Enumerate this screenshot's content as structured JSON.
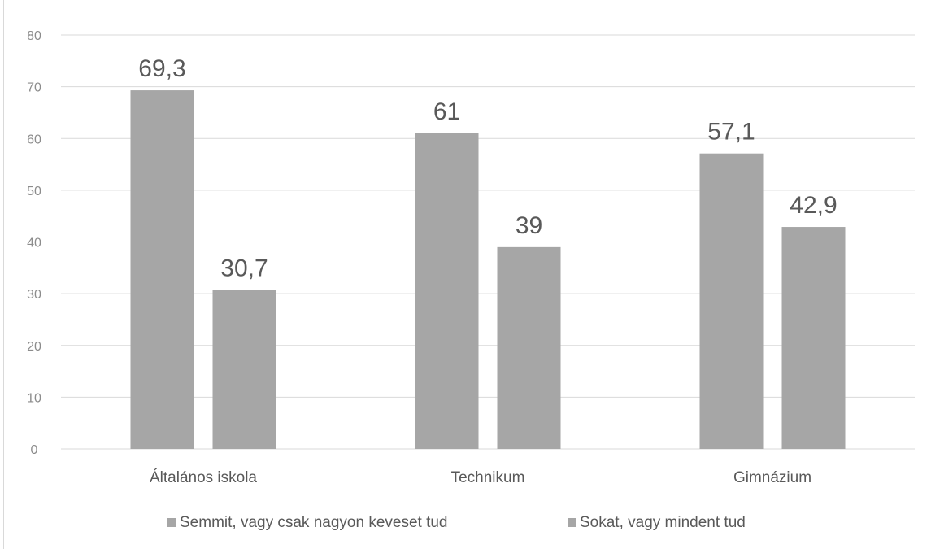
{
  "chart_data": {
    "type": "bar",
    "categories": [
      "Általános iskola",
      "Technikum",
      "Gimnázium"
    ],
    "series": [
      {
        "name": "Semmit, vagy csak nagyon keveset tud",
        "values": [
          69.3,
          61,
          57.1
        ],
        "labels": [
          "69,3",
          "61",
          "57,1"
        ]
      },
      {
        "name": "Sokat, vagy mindent tud",
        "values": [
          30.7,
          39,
          42.9
        ],
        "labels": [
          "30,7",
          "39",
          "42,9"
        ]
      }
    ],
    "y_ticks": [
      0,
      10,
      20,
      30,
      40,
      50,
      60,
      70,
      80
    ],
    "ylim": [
      0,
      80
    ],
    "grid": true,
    "legend_position": "bottom",
    "colors": {
      "series1": "#a6a6a6",
      "series2": "#a6a6a6",
      "grid": "#d9d9d9",
      "text": "#595959"
    }
  }
}
